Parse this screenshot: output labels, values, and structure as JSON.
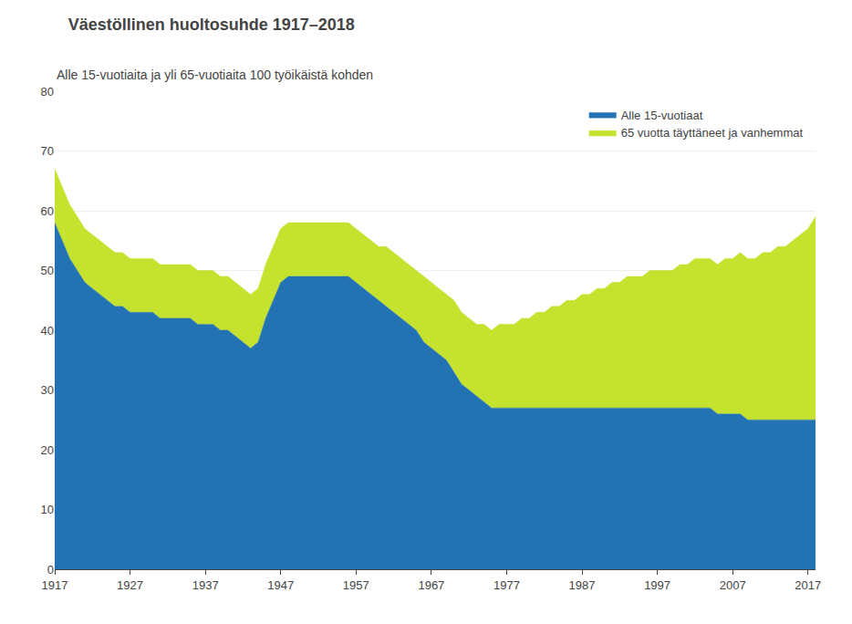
{
  "chart_data": {
    "type": "area",
    "title": "Väestöllinen huoltosuhde 1917–2018",
    "subtitle": "Alle 15-vuotiaita ja yli 65-vuotiaita 100 työikäistä kohden",
    "stacked": true,
    "x": [
      1917,
      1918,
      1919,
      1920,
      1921,
      1922,
      1923,
      1924,
      1925,
      1926,
      1927,
      1928,
      1929,
      1930,
      1931,
      1932,
      1933,
      1934,
      1935,
      1936,
      1937,
      1938,
      1939,
      1940,
      1941,
      1942,
      1943,
      1944,
      1945,
      1946,
      1947,
      1948,
      1949,
      1950,
      1951,
      1952,
      1953,
      1954,
      1955,
      1956,
      1957,
      1958,
      1959,
      1960,
      1961,
      1962,
      1963,
      1964,
      1965,
      1966,
      1967,
      1968,
      1969,
      1970,
      1971,
      1972,
      1973,
      1974,
      1975,
      1976,
      1977,
      1978,
      1979,
      1980,
      1981,
      1982,
      1983,
      1984,
      1985,
      1986,
      1987,
      1988,
      1989,
      1990,
      1991,
      1992,
      1993,
      1994,
      1995,
      1996,
      1997,
      1998,
      1999,
      2000,
      2001,
      2002,
      2003,
      2004,
      2005,
      2006,
      2007,
      2008,
      2009,
      2010,
      2011,
      2012,
      2013,
      2014,
      2015,
      2016,
      2017,
      2018
    ],
    "series": [
      {
        "name": "Alle 15-vuotiaat",
        "color": "#2272b4",
        "values": [
          58,
          55,
          52,
          50,
          48,
          47,
          46,
          45,
          44,
          44,
          43,
          43,
          43,
          43,
          42,
          42,
          42,
          42,
          42,
          41,
          41,
          41,
          40,
          40,
          39,
          38,
          37,
          38,
          42,
          45,
          48,
          49,
          49,
          49,
          49,
          49,
          49,
          49,
          49,
          49,
          48,
          47,
          46,
          45,
          44,
          43,
          42,
          41,
          40,
          38,
          37,
          36,
          35,
          33,
          31,
          30,
          29,
          28,
          27,
          27,
          27,
          27,
          27,
          27,
          27,
          27,
          27,
          27,
          27,
          27,
          27,
          27,
          27,
          27,
          27,
          27,
          27,
          27,
          27,
          27,
          27,
          27,
          27,
          27,
          27,
          27,
          27,
          27,
          26,
          26,
          26,
          26,
          25,
          25,
          25,
          25,
          25,
          25,
          25,
          25,
          25,
          25
        ]
      },
      {
        "name": "65 vuotta täyttäneet ja vanhemmat",
        "color": "#c5e22e",
        "values": [
          9,
          9,
          9,
          9,
          9,
          9,
          9,
          9,
          9,
          9,
          9,
          9,
          9,
          9,
          9,
          9,
          9,
          9,
          9,
          9,
          9,
          9,
          9,
          9,
          9,
          9,
          9,
          9,
          9,
          9,
          9,
          9,
          9,
          9,
          9,
          9,
          9,
          9,
          9,
          9,
          9,
          9,
          9,
          9,
          10,
          10,
          10,
          10,
          10,
          11,
          11,
          11,
          11,
          12,
          12,
          12,
          12,
          13,
          13,
          14,
          14,
          14,
          15,
          15,
          16,
          16,
          17,
          17,
          18,
          18,
          19,
          19,
          20,
          20,
          21,
          21,
          22,
          22,
          22,
          23,
          23,
          23,
          23,
          24,
          24,
          25,
          25,
          25,
          25,
          26,
          26,
          27,
          27,
          27,
          28,
          28,
          29,
          29,
          30,
          31,
          32,
          34
        ]
      }
    ],
    "xlim": [
      1917,
      2018
    ],
    "xticks": [
      1917,
      1927,
      1937,
      1947,
      1957,
      1967,
      1977,
      1987,
      1997,
      2007,
      2017
    ],
    "ylim": [
      0,
      80
    ],
    "yticks": [
      0,
      10,
      20,
      30,
      40,
      50,
      60,
      70,
      80
    ],
    "grid": true,
    "legend": "upper right"
  }
}
